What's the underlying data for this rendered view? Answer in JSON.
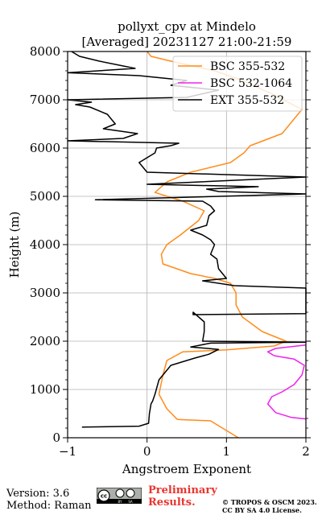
{
  "chart_data": {
    "type": "line",
    "title": "pollyxt_cpv at Mindelo",
    "subtitle": "[Averaged] 20231127 21:00-21:59",
    "xlabel": "Angstroem Exponent",
    "ylabel": "Height (m)",
    "xlim": [
      -1,
      2
    ],
    "ylim": [
      0,
      8000
    ],
    "x_ticks": [
      "−1",
      "0",
      "1",
      "2"
    ],
    "y_ticks": [
      "0",
      "1000",
      "2000",
      "3000",
      "4000",
      "5000",
      "6000",
      "7000",
      "8000"
    ],
    "grid": true,
    "legend_position": "top-right",
    "series": [
      {
        "name": "BSC 355-532",
        "color": "#ff8c1a",
        "points": [
          [
            1.15,
            0
          ],
          [
            1.0,
            150
          ],
          [
            0.8,
            350
          ],
          [
            0.38,
            380
          ],
          [
            0.25,
            600
          ],
          [
            0.15,
            900
          ],
          [
            0.2,
            1300
          ],
          [
            0.25,
            1600
          ],
          [
            0.45,
            1780
          ],
          [
            1.0,
            1820
          ],
          [
            1.6,
            1900
          ],
          [
            1.75,
            2000
          ],
          [
            1.45,
            2200
          ],
          [
            1.2,
            2500
          ],
          [
            1.12,
            2750
          ],
          [
            1.12,
            3000
          ],
          [
            1.05,
            3200
          ],
          [
            0.85,
            3300
          ],
          [
            0.55,
            3400
          ],
          [
            0.2,
            3600
          ],
          [
            0.18,
            3800
          ],
          [
            0.25,
            4000
          ],
          [
            0.42,
            4200
          ],
          [
            0.65,
            4500
          ],
          [
            0.72,
            4700
          ],
          [
            0.45,
            4900
          ],
          [
            0.1,
            5080
          ],
          [
            0.25,
            5300
          ],
          [
            0.55,
            5500
          ],
          [
            1.05,
            5700
          ],
          [
            1.22,
            5900
          ],
          [
            1.3,
            6050
          ],
          [
            1.7,
            6300
          ],
          [
            1.95,
            6800
          ],
          [
            1.6,
            7100
          ],
          [
            1.2,
            7400
          ],
          [
            0.85,
            7600
          ],
          [
            0.3,
            7800
          ],
          [
            0.05,
            7900
          ],
          [
            0.0,
            8000
          ]
        ]
      },
      {
        "name": "BSC 532-1064",
        "color": "#ee22ee",
        "points": [
          [
            2.0,
            390
          ],
          [
            1.82,
            420
          ],
          [
            1.62,
            520
          ],
          [
            1.52,
            700
          ],
          [
            1.57,
            850
          ],
          [
            1.7,
            950
          ],
          [
            1.85,
            1100
          ],
          [
            1.95,
            1300
          ],
          [
            1.98,
            1500
          ],
          [
            1.85,
            1630
          ],
          [
            1.6,
            1700
          ],
          [
            1.52,
            1780
          ],
          [
            1.62,
            1850
          ],
          [
            2.0,
            1920
          ]
        ]
      },
      {
        "name": "EXT 355-532",
        "color": "#000000",
        "points": [
          [
            -0.82,
            220
          ],
          [
            -0.1,
            240
          ],
          [
            0.02,
            300
          ],
          [
            0.03,
            500
          ],
          [
            0.05,
            700
          ],
          [
            0.07,
            760
          ],
          [
            0.1,
            900
          ],
          [
            0.15,
            1200
          ],
          [
            0.3,
            1500
          ],
          [
            0.6,
            1650
          ],
          [
            0.78,
            1730
          ],
          [
            0.9,
            1830
          ],
          [
            0.55,
            1880
          ],
          [
            0.8,
            1960
          ],
          [
            2.0,
            1980
          ],
          [
            0.7,
            2000
          ],
          [
            0.72,
            2200
          ],
          [
            0.72,
            2400
          ],
          [
            0.58,
            2600
          ],
          [
            0.58,
            2550
          ],
          [
            2.0,
            2570
          ],
          [
            2.0,
            3100
          ],
          [
            1.1,
            3150
          ],
          [
            0.7,
            3250
          ],
          [
            1.0,
            3300
          ],
          [
            0.9,
            3500
          ],
          [
            0.88,
            3700
          ],
          [
            0.8,
            3800
          ],
          [
            0.85,
            4000
          ],
          [
            0.8,
            4100
          ],
          [
            0.7,
            4200
          ],
          [
            0.55,
            4300
          ],
          [
            0.75,
            4400
          ],
          [
            0.78,
            4600
          ],
          [
            0.85,
            4700
          ],
          [
            0.8,
            4800
          ],
          [
            0.7,
            4900
          ],
          [
            -0.65,
            4930
          ],
          [
            2.0,
            5050
          ],
          [
            0.9,
            5100
          ],
          [
            0.75,
            5150
          ],
          [
            1.4,
            5200
          ],
          [
            0.0,
            5250
          ],
          [
            2.0,
            5400
          ],
          [
            1.0,
            5450
          ],
          [
            0.0,
            5500
          ],
          [
            -0.1,
            5700
          ],
          [
            0.1,
            5900
          ],
          [
            0.12,
            6000
          ],
          [
            0.3,
            6050
          ],
          [
            0.4,
            6100
          ],
          [
            -1.0,
            6150
          ],
          [
            -0.3,
            6200
          ],
          [
            -0.12,
            6300
          ],
          [
            -0.55,
            6400
          ],
          [
            -0.4,
            6500
          ],
          [
            -0.5,
            6700
          ],
          [
            -0.72,
            6850
          ],
          [
            -0.9,
            6900
          ],
          [
            -0.7,
            6950
          ],
          [
            -1.0,
            7000
          ],
          [
            0.5,
            7050
          ],
          [
            0.9,
            7200
          ],
          [
            0.3,
            7300
          ],
          [
            0.5,
            7400
          ],
          [
            -0.1,
            7500
          ],
          [
            -1.0,
            7560
          ],
          [
            -0.15,
            7650
          ],
          [
            -0.3,
            7700
          ],
          [
            -0.6,
            7800
          ],
          [
            -0.85,
            7900
          ],
          [
            -0.95,
            8000
          ]
        ]
      }
    ]
  },
  "footer": {
    "version": "Version: 3.6",
    "method": "Method: Raman",
    "prelim_line1": "Preliminary",
    "prelim_line2": "Results.",
    "copyright_line1": "© TROPOS & OSCM 2023.",
    "copyright_line2": "CC BY SA 4.0 License.",
    "license_logo": "cc-by-sa-badge"
  }
}
